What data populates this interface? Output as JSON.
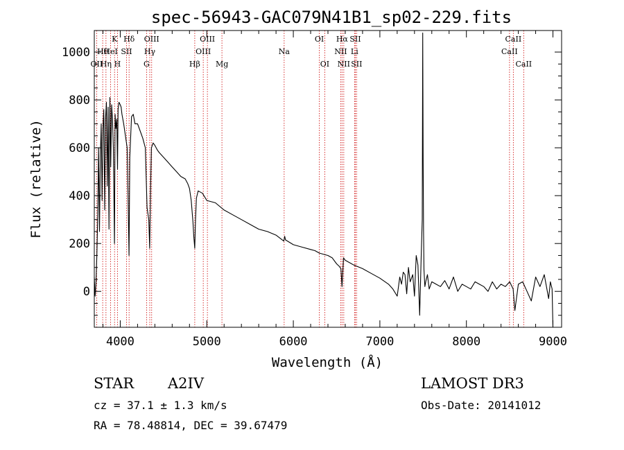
{
  "chart_data": {
    "type": "line",
    "title": "spec-56943-GAC079N41B1_sp02-229.fits",
    "xlabel": "Wavelength (Å)",
    "ylabel": "Flux (relative)",
    "xlim": [
      3700,
      9100
    ],
    "ylim": [
      -150,
      1090
    ],
    "xticks": [
      4000,
      5000,
      6000,
      7000,
      8000,
      9000
    ],
    "yticks": [
      0,
      200,
      400,
      600,
      800,
      1000
    ],
    "xtick_labels": [
      "4000",
      "5000",
      "6000",
      "7000",
      "8000",
      "9000"
    ],
    "ytick_labels": [
      "0",
      "200",
      "400",
      "600",
      "800",
      "1000"
    ],
    "line_color": "#000000",
    "marker_color": "#cc0000",
    "series": [
      {
        "name": "Flux",
        "x": [
          3700,
          3710,
          3720,
          3730,
          3740,
          3750,
          3760,
          3770,
          3780,
          3790,
          3800,
          3810,
          3820,
          3830,
          3840,
          3850,
          3860,
          3870,
          3880,
          3890,
          3900,
          3910,
          3920,
          3933,
          3940,
          3950,
          3960,
          3968,
          3975,
          3985,
          4000,
          4010,
          4020,
          4040,
          4060,
          4080,
          4090,
          4101,
          4110,
          4130,
          4150,
          4170,
          4200,
          4230,
          4260,
          4290,
          4310,
          4330,
          4340,
          4350,
          4360,
          4380,
          4400,
          4430,
          4450,
          4500,
          4550,
          4600,
          4650,
          4700,
          4750,
          4780,
          4800,
          4820,
          4840,
          4850,
          4861,
          4870,
          4880,
          4900,
          4950,
          5000,
          5100,
          5200,
          5300,
          5400,
          5500,
          5600,
          5700,
          5800,
          5890,
          5900,
          5910,
          6000,
          6100,
          6200,
          6250,
          6300,
          6400,
          6450,
          6500,
          6530,
          6550,
          6563,
          6580,
          6600,
          6700,
          6800,
          6900,
          7000,
          7100,
          7150,
          7200,
          7230,
          7250,
          7270,
          7290,
          7310,
          7330,
          7350,
          7380,
          7400,
          7420,
          7440,
          7460,
          7480,
          7490,
          7495,
          7500,
          7505,
          7510,
          7520,
          7530,
          7550,
          7570,
          7600,
          7650,
          7700,
          7750,
          7800,
          7850,
          7900,
          7950,
          8000,
          8050,
          8100,
          8150,
          8200,
          8250,
          8300,
          8350,
          8400,
          8450,
          8500,
          8540,
          8560,
          8600,
          8650,
          8700,
          8750,
          8800,
          8850,
          8900,
          8950,
          8970,
          8990,
          9000
        ],
        "y": [
          60,
          -20,
          40,
          150,
          320,
          600,
          250,
          560,
          700,
          380,
          680,
          760,
          340,
          720,
          790,
          440,
          770,
          260,
          810,
          520,
          780,
          720,
          600,
          200,
          740,
          680,
          720,
          510,
          760,
          790,
          780,
          770,
          740,
          700,
          650,
          600,
          400,
          150,
          560,
          730,
          740,
          700,
          700,
          670,
          640,
          600,
          350,
          300,
          180,
          420,
          600,
          620,
          610,
          590,
          580,
          560,
          540,
          520,
          500,
          480,
          470,
          450,
          430,
          380,
          290,
          230,
          180,
          300,
          390,
          420,
          410,
          380,
          370,
          340,
          320,
          300,
          280,
          260,
          250,
          235,
          210,
          230,
          215,
          195,
          185,
          175,
          170,
          160,
          150,
          140,
          115,
          105,
          95,
          20,
          140,
          130,
          110,
          95,
          75,
          55,
          30,
          10,
          -20,
          60,
          30,
          80,
          70,
          -10,
          100,
          40,
          70,
          -20,
          150,
          110,
          -100,
          180,
          300,
          1080,
          550,
          250,
          90,
          20,
          40,
          70,
          10,
          40,
          30,
          20,
          45,
          10,
          60,
          0,
          30,
          20,
          10,
          40,
          30,
          20,
          0,
          40,
          10,
          30,
          20,
          40,
          10,
          -80,
          30,
          40,
          0,
          -40,
          60,
          20,
          70,
          -30,
          40,
          10,
          -150
        ]
      }
    ],
    "annotations": [
      {
        "label": "Hθ",
        "x": 3797,
        "row": 1
      },
      {
        "label": "OII",
        "x": 3727,
        "row": 2
      },
      {
        "label": "Hη",
        "x": 3835,
        "row": 2
      },
      {
        "label": "HeI",
        "x": 3889,
        "row": 1
      },
      {
        "label": "K",
        "x": 3934,
        "row": 0
      },
      {
        "label": "H",
        "x": 3968,
        "row": 2
      },
      {
        "label": "SII",
        "x": 4072,
        "row": 1
      },
      {
        "label": "Hδ",
        "x": 4102,
        "row": 0
      },
      {
        "label": "G",
        "x": 4304,
        "row": 2
      },
      {
        "label": "Hγ",
        "x": 4341,
        "row": 1
      },
      {
        "label": "OIII",
        "x": 4363,
        "row": 0
      },
      {
        "label": "Hβ",
        "x": 4861,
        "row": 2
      },
      {
        "label": "OIII",
        "x": 4959,
        "row": 1
      },
      {
        "label": "OIII",
        "x": 5007,
        "row": 0
      },
      {
        "label": "Mg",
        "x": 5175,
        "row": 2
      },
      {
        "label": "Na",
        "x": 5894,
        "row": 1
      },
      {
        "label": "OI",
        "x": 6300,
        "row": 0
      },
      {
        "label": "OI",
        "x": 6363,
        "row": 2
      },
      {
        "label": "NII",
        "x": 6548,
        "row": 1
      },
      {
        "label": "Hα",
        "x": 6563,
        "row": 0
      },
      {
        "label": "NII",
        "x": 6583,
        "row": 2
      },
      {
        "label": "Li",
        "x": 6707,
        "row": 1
      },
      {
        "label": "SII",
        "x": 6716,
        "row": 0
      },
      {
        "label": "SII",
        "x": 6731,
        "row": 2
      },
      {
        "label": "CaII",
        "x": 8498,
        "row": 1
      },
      {
        "label": "CaII",
        "x": 8542,
        "row": 0
      },
      {
        "label": "CaII",
        "x": 8662,
        "row": 2
      }
    ]
  },
  "info": {
    "object_class": "STAR",
    "subclass": "A2IV",
    "survey": "LAMOST DR3",
    "cz": "cz = 37.1 ± 1.3 km/s",
    "obs_date": "Obs-Date: 20141012",
    "coords": "RA =  78.48814, DEC =  39.67479"
  }
}
